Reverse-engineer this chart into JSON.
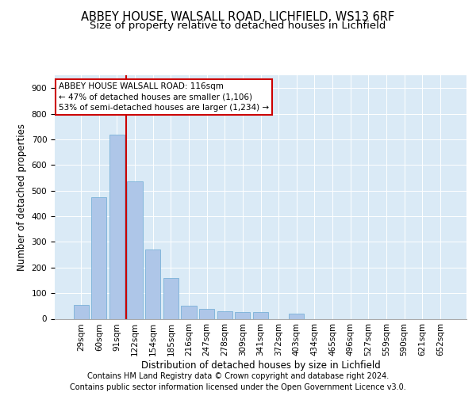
{
  "title_line1": "ABBEY HOUSE, WALSALL ROAD, LICHFIELD, WS13 6RF",
  "title_line2": "Size of property relative to detached houses in Lichfield",
  "xlabel": "Distribution of detached houses by size in Lichfield",
  "ylabel": "Number of detached properties",
  "categories": [
    "29sqm",
    "60sqm",
    "91sqm",
    "122sqm",
    "154sqm",
    "185sqm",
    "216sqm",
    "247sqm",
    "278sqm",
    "309sqm",
    "341sqm",
    "372sqm",
    "403sqm",
    "434sqm",
    "465sqm",
    "496sqm",
    "527sqm",
    "559sqm",
    "590sqm",
    "621sqm",
    "652sqm"
  ],
  "values": [
    55,
    475,
    718,
    535,
    270,
    160,
    50,
    40,
    28,
    25,
    25,
    0,
    20,
    0,
    0,
    0,
    0,
    0,
    0,
    0,
    0
  ],
  "bar_color": "#aec6e8",
  "bar_edge_color": "#6aaad4",
  "plot_bg_color": "#daeaf6",
  "vline_color": "#cc0000",
  "annotation_text": "ABBEY HOUSE WALSALL ROAD: 116sqm\n← 47% of detached houses are smaller (1,106)\n53% of semi-detached houses are larger (1,234) →",
  "annotation_box_color": "white",
  "annotation_box_edge": "#cc0000",
  "ylim": [
    0,
    950
  ],
  "yticks": [
    0,
    100,
    200,
    300,
    400,
    500,
    600,
    700,
    800,
    900
  ],
  "footer_line1": "Contains HM Land Registry data © Crown copyright and database right 2024.",
  "footer_line2": "Contains public sector information licensed under the Open Government Licence v3.0.",
  "title_fontsize": 10.5,
  "subtitle_fontsize": 9.5,
  "axis_label_fontsize": 8.5,
  "tick_fontsize": 7.5,
  "annotation_fontsize": 7.5,
  "footer_fontsize": 7.0
}
